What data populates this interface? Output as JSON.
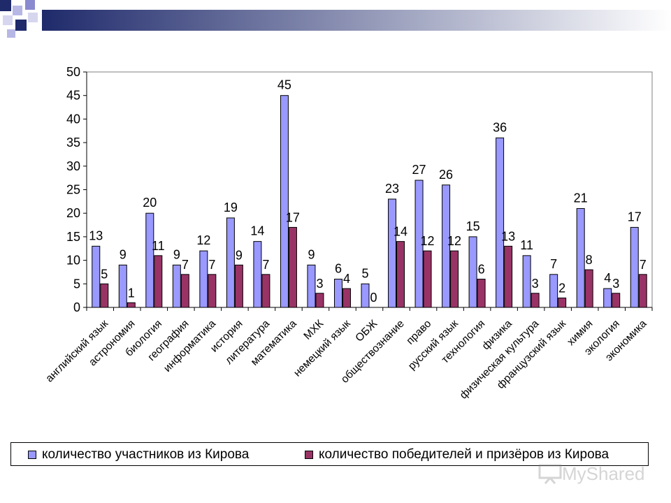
{
  "colors": {
    "participants": "#9999ff",
    "winners": "#993366",
    "bar_outline": "#000000",
    "title_bar_dark": "#1f2a6b",
    "title_bar_light": "#c8c8d8"
  },
  "watermark": {
    "text": "MyShared",
    "icon": "presentation-screen-icon"
  },
  "chart_data": {
    "type": "bar",
    "title": "",
    "xlabel": "",
    "ylabel": "",
    "ylim": [
      0,
      50
    ],
    "yticks": [
      0,
      5,
      10,
      15,
      20,
      25,
      30,
      35,
      40,
      45,
      50
    ],
    "grid": false,
    "legend_position": "bottom",
    "categories": [
      "английский язык",
      "астрономия",
      "биология",
      "география",
      "информатика",
      "история",
      "литература",
      "математика",
      "МХК",
      "немецкий язык",
      "ОБЖ",
      "обществознание",
      "право",
      "русский язык",
      "технология",
      "физика",
      "физическая культура",
      "французский язык",
      "химия",
      "экология",
      "экономика"
    ],
    "series": [
      {
        "name": "количество участников из Кирова",
        "values": [
          13,
          9,
          20,
          9,
          12,
          19,
          14,
          45,
          9,
          6,
          5,
          23,
          27,
          26,
          15,
          36,
          11,
          7,
          21,
          4,
          17
        ]
      },
      {
        "name": "количество победителей и призёров из Кирова",
        "values": [
          5,
          1,
          11,
          7,
          7,
          9,
          7,
          17,
          3,
          4,
          0,
          14,
          12,
          12,
          6,
          13,
          3,
          2,
          8,
          3,
          7
        ]
      }
    ]
  }
}
